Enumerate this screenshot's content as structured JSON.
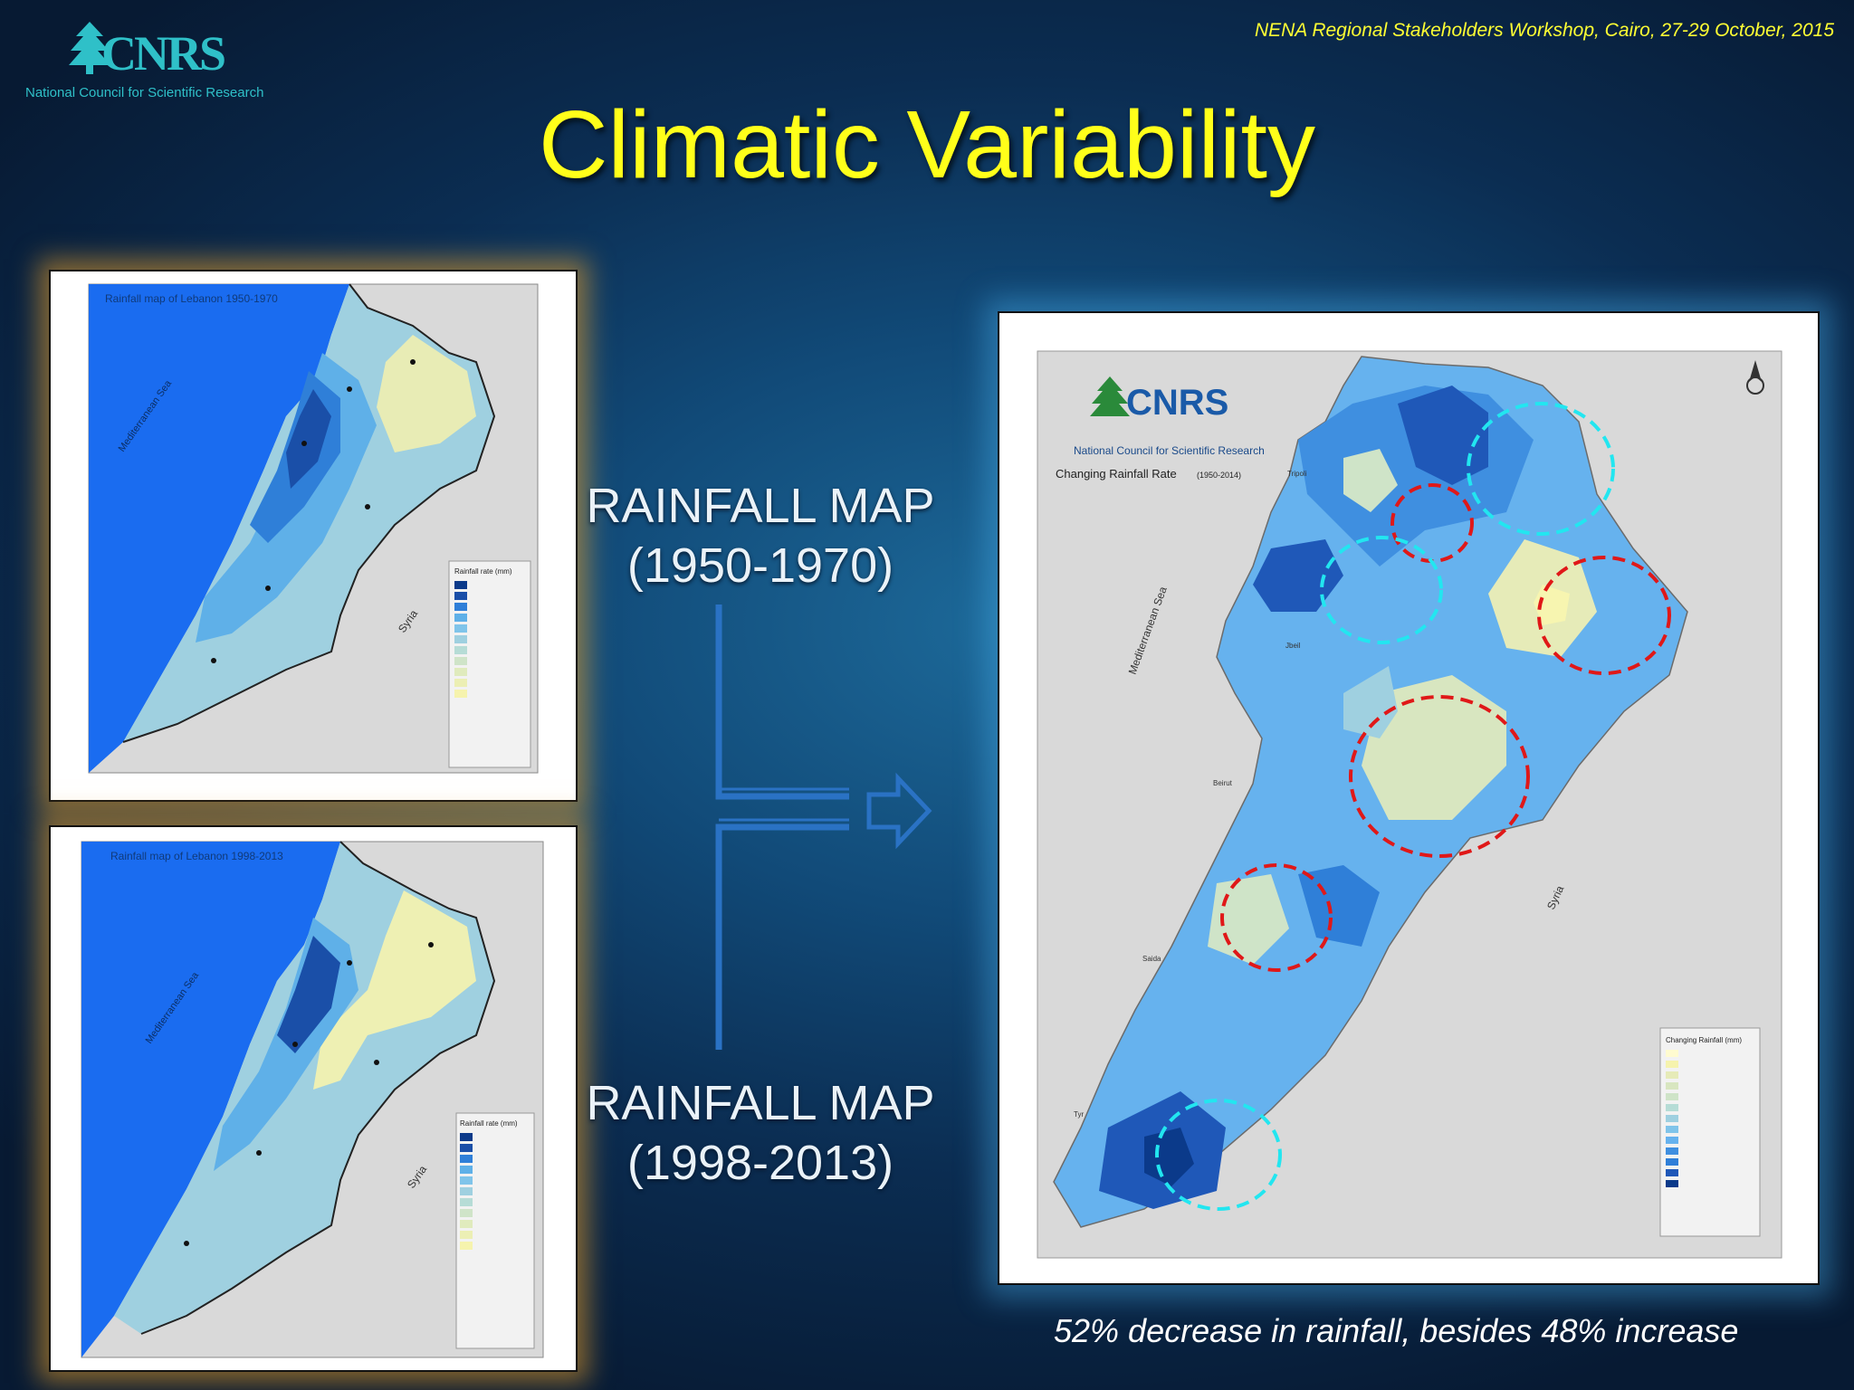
{
  "header": {
    "logo_text": "CNRS",
    "logo_subtitle": "National Council for Scientific Research",
    "event": "NENA Regional  Stakeholders Workshop, Cairo, 27-29 October, 2015"
  },
  "slide": {
    "title": "Climatic Variability",
    "caption": "52% decrease in rainfall, besides 48% increase"
  },
  "labels": {
    "map1_line1": "RAINFALL MAP",
    "map1_line2": "(1950-1970)",
    "map2_line1": "RAINFALL MAP",
    "map2_line2": "(1998-2013)"
  },
  "map1": {
    "title": "Rainfall map of Lebanon 1950-1970",
    "sea": "Mediterranean Sea",
    "country": "Syria",
    "legend_title": "Rainfall rate (mm)"
  },
  "map2": {
    "title": "Rainfall map of Lebanon 1998-2013",
    "sea": "Mediterranean Sea",
    "country": "Syria",
    "legend_title": "Rainfall rate (mm)"
  },
  "map3": {
    "logo_text": "CNRS",
    "logo_subtitle": "National Council for Scientific Research",
    "subtitle": "Changing Rainfall Rate",
    "subtitle_years": "(1950-2014)",
    "sea": "Mediterranean Sea",
    "country": "Syria",
    "legend_title": "Changing Rainfall (mm)",
    "places": [
      "Tripoli",
      "Jbeil",
      "Beirut",
      "Saida",
      "Tyr"
    ]
  },
  "colors": {
    "sea": "#1a6cf0",
    "title": "#ffff1a",
    "decrease_marker": "#e01818",
    "increase_marker": "#22e6f0",
    "arrow": "#2a72c4"
  }
}
